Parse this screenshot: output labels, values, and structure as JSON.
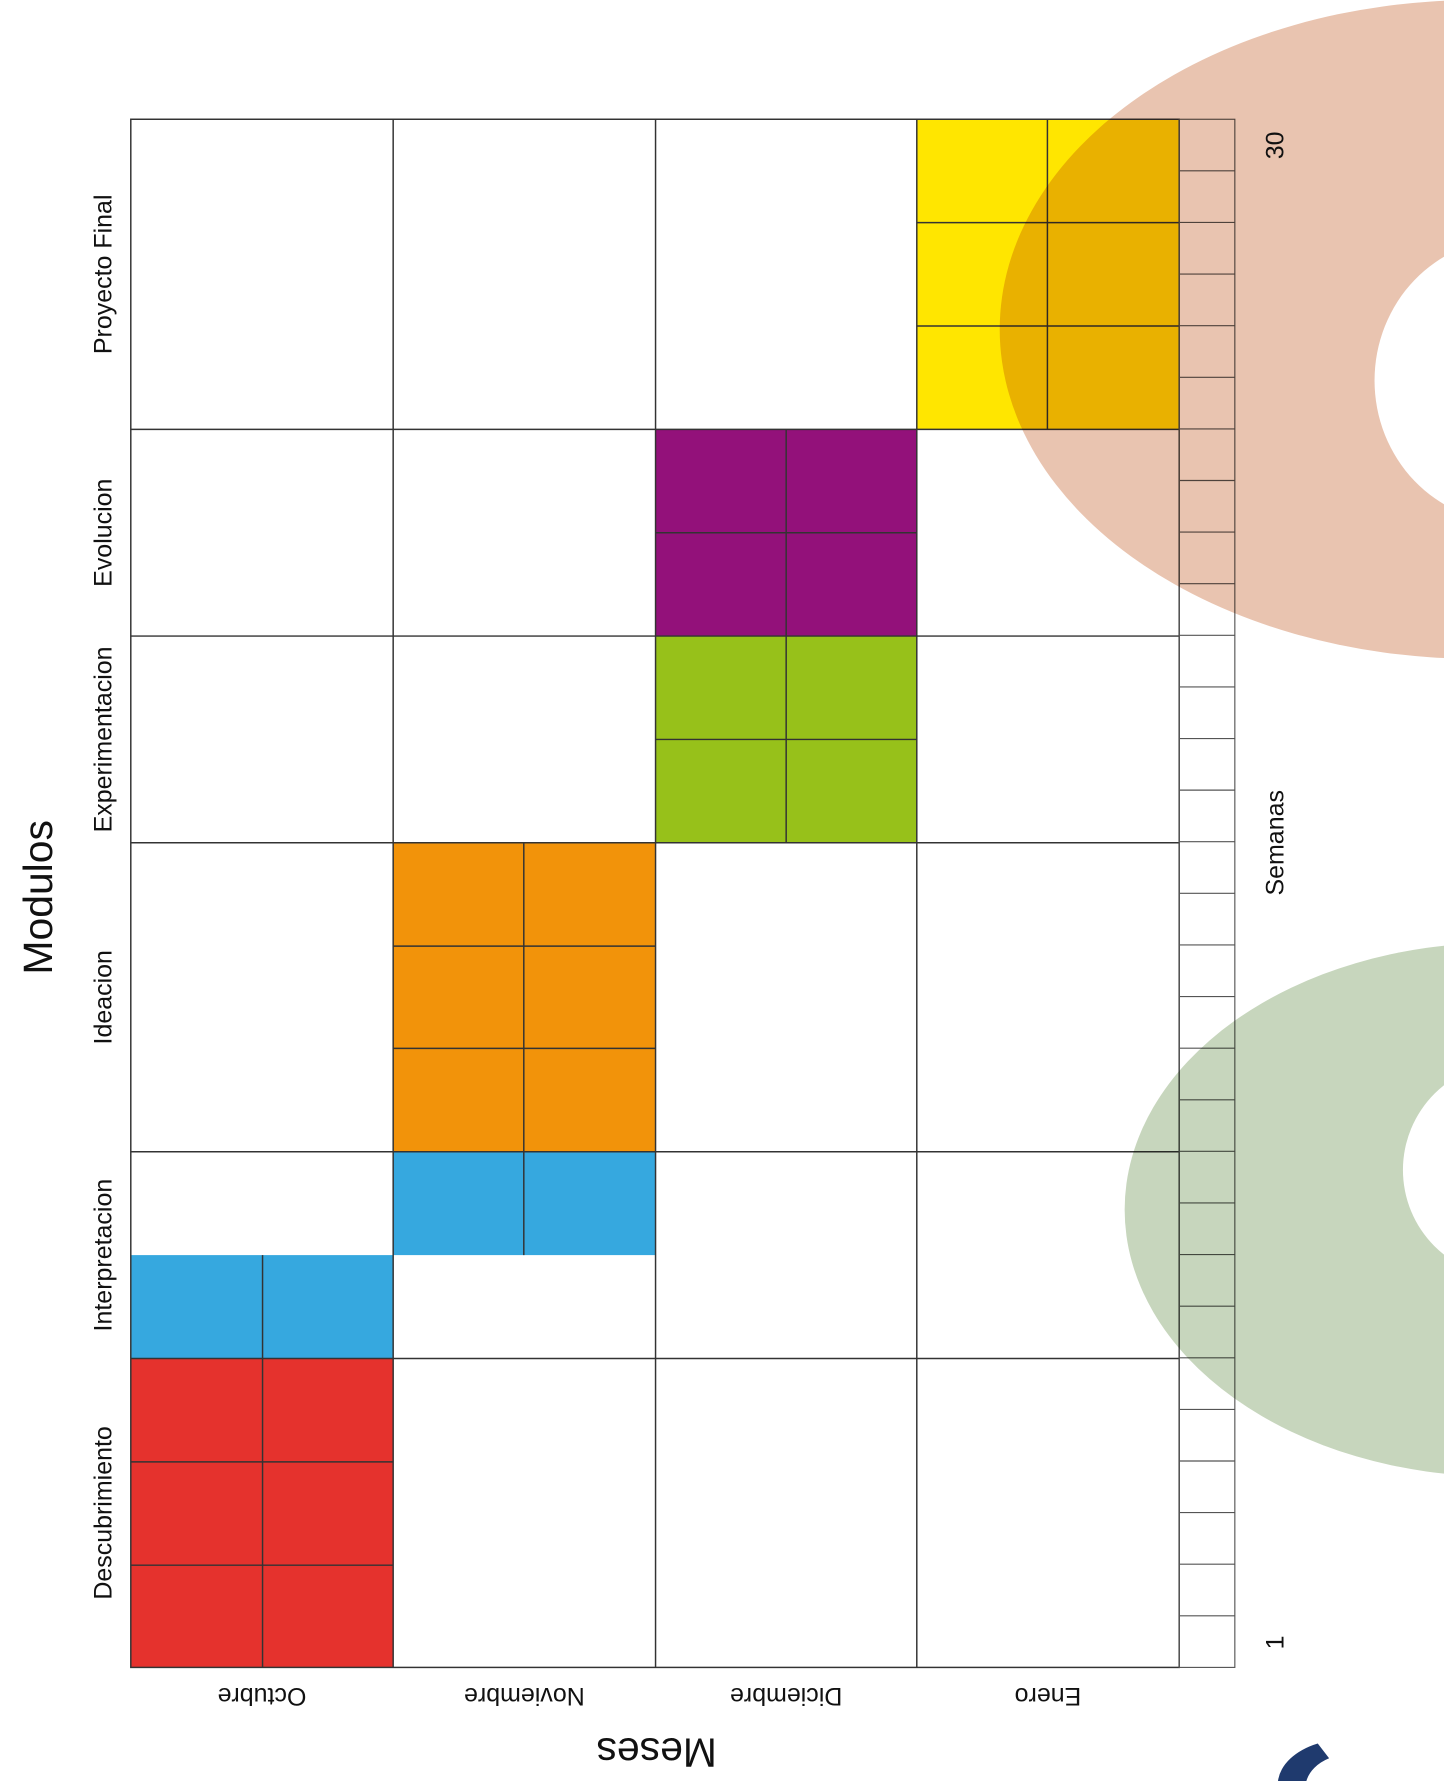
{
  "diagram": {
    "title": "Modulos",
    "modules": [
      "Descubrimiento",
      "Interpretacion",
      "Ideacion",
      "Experimentacion",
      "Evolucion",
      "Proyecto Final"
    ],
    "months_axis_label": "Meses",
    "months": [
      "Octubre",
      "Noviembre",
      "Diciembre",
      "Enero"
    ],
    "weeks_axis_label": "Semanas",
    "week_first_label": "1",
    "week_last_label": "30"
  }
}
